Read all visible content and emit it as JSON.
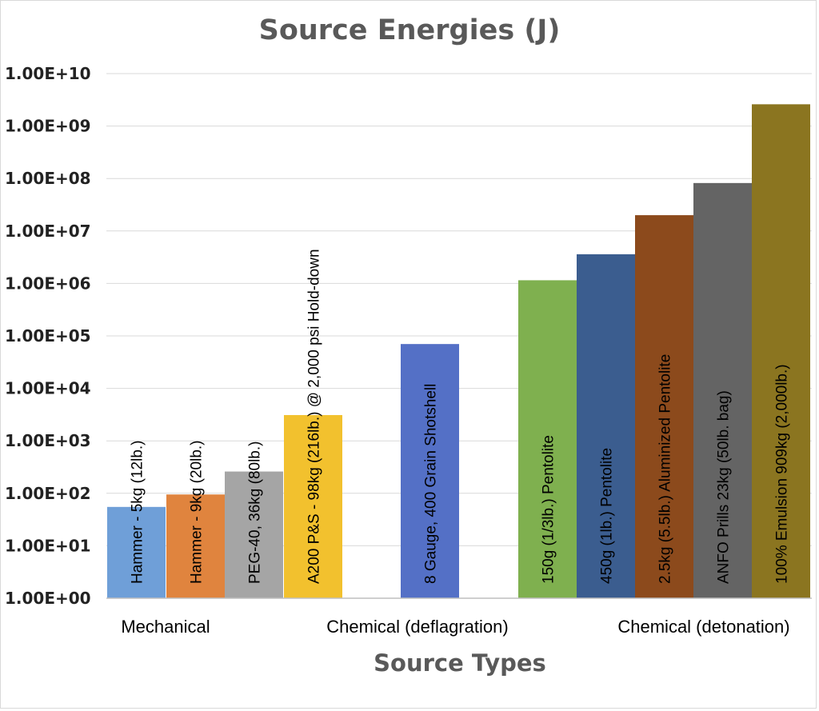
{
  "chart_data": {
    "type": "bar",
    "title": "Source Energies (J)",
    "xlabel": "Source Types",
    "ylabel": "",
    "yscale": "log",
    "ylim": [
      1,
      10000000000
    ],
    "yticks": [
      "1.00E+00",
      "1.00E+01",
      "1.00E+02",
      "1.00E+03",
      "1.00E+04",
      "1.00E+05",
      "1.00E+06",
      "1.00E+07",
      "1.00E+08",
      "1.00E+09",
      "1.00E+10"
    ],
    "grid": true,
    "groups": [
      {
        "label": "Mechanical"
      },
      {
        "label": "Chemical (deflagration)"
      },
      {
        "label": "Chemical (detonation)"
      }
    ],
    "bars": [
      {
        "label": "Hammer - 5kg (12lb.)",
        "value": 55,
        "color": "#6f9fd8"
      },
      {
        "label": "Hammer - 9kg (20lb.)",
        "value": 95,
        "color": "#e0843e"
      },
      {
        "label": "PEG-40, 36kg (80lb.)",
        "value": 260,
        "color": "#a5a5a5"
      },
      {
        "label": "A200 P&S - 98kg (216lb.)  @ 2,000 psi Hold-down",
        "value": 3100,
        "color": "#f2c12e"
      },
      {
        "label": "8 Gauge, 400 Grain Shotshell",
        "value": 70000,
        "color": "#5470c6"
      },
      {
        "label": "150g (1/3lb.) Pentolite",
        "value": 1150000,
        "color": "#7fb04f"
      },
      {
        "label": "450g (1lb.) Pentolite",
        "value": 3600000,
        "color": "#3b5d8f"
      },
      {
        "label": "2.5kg (5.5lb.) Aluminized Pentolite",
        "value": 20000000,
        "color": "#8c4a1c"
      },
      {
        "label": "ANFO Prills 23kg (50lb. bag)",
        "value": 82000000,
        "color": "#646464"
      },
      {
        "label": "100% Emulsion 909kg (2,000lb.)",
        "value": 2600000000,
        "color": "#8b7520"
      }
    ]
  }
}
